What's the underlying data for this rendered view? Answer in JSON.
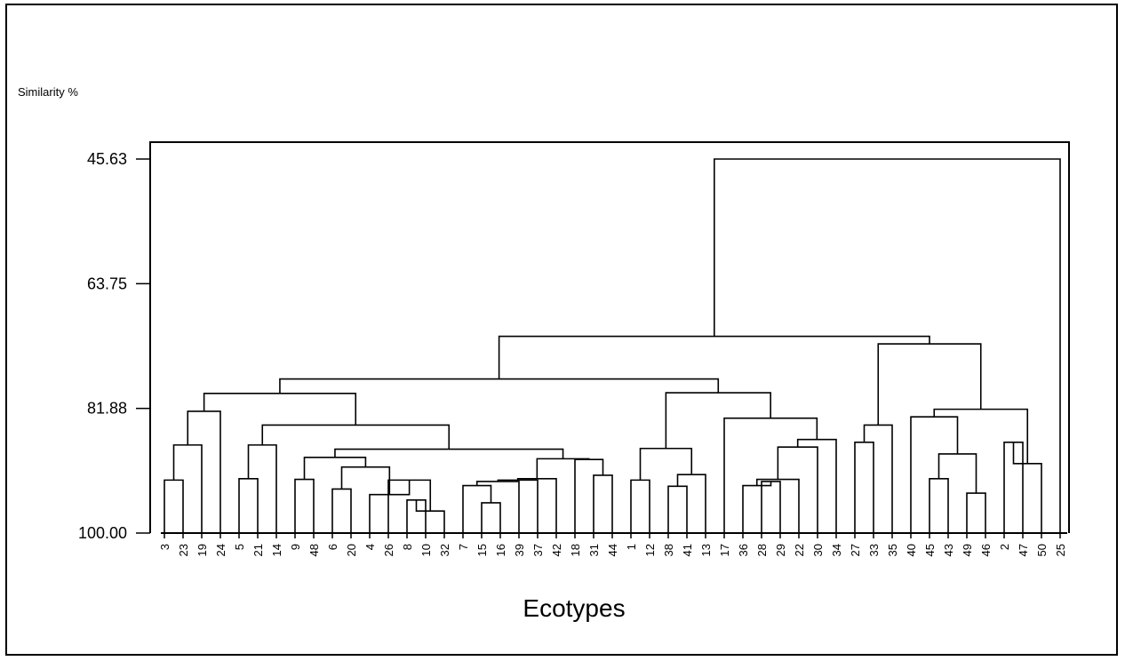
{
  "chart_data": {
    "type": "dendrogram",
    "ylabel": "Similarity %",
    "xlabel": "Ecotypes",
    "ylim": [
      45.63,
      100.0
    ],
    "y_ticks": [
      45.63,
      63.75,
      81.88,
      100.0
    ],
    "y_tick_labels": [
      "45.63",
      "63.75",
      "81.88",
      "100.00"
    ],
    "leaves": [
      "3",
      "23",
      "19",
      "24",
      "5",
      "21",
      "14",
      "9",
      "48",
      "6",
      "20",
      "4",
      "26",
      "8",
      "10",
      "32",
      "7",
      "15",
      "16",
      "39",
      "37",
      "42",
      "18",
      "31",
      "44",
      "1",
      "12",
      "38",
      "41",
      "13",
      "17",
      "36",
      "28",
      "29",
      "22",
      "30",
      "34",
      "27",
      "33",
      "35",
      "40",
      "45",
      "43",
      "49",
      "46",
      "2",
      "47",
      "50",
      "25"
    ],
    "merges": [
      {
        "id": "a1",
        "children": [
          "3",
          "23"
        ],
        "similarity": 92.3
      },
      {
        "id": "a2",
        "children": [
          "a1",
          "19"
        ],
        "similarity": 87.2
      },
      {
        "id": "a3",
        "children": [
          "a2",
          "24"
        ],
        "similarity": 82.3
      },
      {
        "id": "b1",
        "children": [
          "5",
          "21"
        ],
        "similarity": 92.1
      },
      {
        "id": "b2",
        "children": [
          "b1",
          "14"
        ],
        "similarity": 87.2
      },
      {
        "id": "c1",
        "children": [
          "9",
          "48"
        ],
        "similarity": 92.2
      },
      {
        "id": "c2",
        "children": [
          "6",
          "20"
        ],
        "similarity": 93.6
      },
      {
        "id": "c3",
        "children": [
          "8",
          "10"
        ],
        "similarity": 95.2
      },
      {
        "id": "c4",
        "children": [
          "c3",
          "32"
        ],
        "similarity": 96.8
      },
      {
        "id": "c5",
        "children": [
          "c4",
          "26"
        ],
        "similarity": 92.3
      },
      {
        "id": "c6",
        "children": [
          "c5",
          "4"
        ],
        "similarity": 94.4
      },
      {
        "id": "c7",
        "children": [
          "c2",
          "c6"
        ],
        "similarity": 90.4
      },
      {
        "id": "c8",
        "children": [
          "c1",
          "c7"
        ],
        "similarity": 89.0
      },
      {
        "id": "d1",
        "children": [
          "15",
          "16"
        ],
        "similarity": 95.6
      },
      {
        "id": "d2",
        "children": [
          "7",
          "d1"
        ],
        "similarity": 93.1
      },
      {
        "id": "d3",
        "children": [
          "d2",
          "39"
        ],
        "similarity": 92.5
      },
      {
        "id": "d4",
        "children": [
          "d3",
          "37"
        ],
        "similarity": 92.3
      },
      {
        "id": "d5",
        "children": [
          "d4",
          "42"
        ],
        "similarity": 92.1
      },
      {
        "id": "d6",
        "children": [
          "31",
          "44"
        ],
        "similarity": 91.6
      },
      {
        "id": "d7",
        "children": [
          "18",
          "d6"
        ],
        "similarity": 89.3
      },
      {
        "id": "d8",
        "children": [
          "d5",
          "d7"
        ],
        "similarity": 89.2
      },
      {
        "id": "e1",
        "children": [
          "c8",
          "d8"
        ],
        "similarity": 87.8
      },
      {
        "id": "e2",
        "children": [
          "b2",
          "e1"
        ],
        "similarity": 84.3
      },
      {
        "id": "e3",
        "children": [
          "a3",
          "e2"
        ],
        "similarity": 79.7
      },
      {
        "id": "f1",
        "children": [
          "1",
          "12"
        ],
        "similarity": 92.3
      },
      {
        "id": "f2",
        "children": [
          "38",
          "41"
        ],
        "similarity": 93.2
      },
      {
        "id": "f3",
        "children": [
          "f2",
          "13"
        ],
        "similarity": 91.5
      },
      {
        "id": "f4",
        "children": [
          "f1",
          "f3"
        ],
        "similarity": 87.7
      },
      {
        "id": "g1",
        "children": [
          "28",
          "29"
        ],
        "similarity": 92.5
      },
      {
        "id": "g2",
        "children": [
          "36",
          "g1"
        ],
        "similarity": 93.1
      },
      {
        "id": "g3",
        "children": [
          "g2",
          "22"
        ],
        "similarity": 92.2
      },
      {
        "id": "g4",
        "children": [
          "g3",
          "30"
        ],
        "similarity": 87.5
      },
      {
        "id": "g5",
        "children": [
          "g4",
          "34"
        ],
        "similarity": 86.4
      },
      {
        "id": "g6",
        "children": [
          "17",
          "g5"
        ],
        "similarity": 83.3
      },
      {
        "id": "f5",
        "children": [
          "f4",
          "g6"
        ],
        "similarity": 79.6
      },
      {
        "id": "f6",
        "children": [
          "e3",
          "f5"
        ],
        "similarity": 77.6
      },
      {
        "id": "h1",
        "children": [
          "27",
          "33"
        ],
        "similarity": 86.8
      },
      {
        "id": "h2",
        "children": [
          "h1",
          "35"
        ],
        "similarity": 84.3
      },
      {
        "id": "h3",
        "children": [
          "45",
          "43"
        ],
        "similarity": 92.1
      },
      {
        "id": "h4",
        "children": [
          "49",
          "46"
        ],
        "similarity": 94.2
      },
      {
        "id": "h5",
        "children": [
          "h3",
          "h4"
        ],
        "similarity": 88.5
      },
      {
        "id": "h6",
        "children": [
          "40",
          "h5"
        ],
        "similarity": 83.1
      },
      {
        "id": "h7",
        "children": [
          "2",
          "47"
        ],
        "similarity": 86.8
      },
      {
        "id": "h8",
        "children": [
          "h7",
          "50"
        ],
        "similarity": 89.9
      },
      {
        "id": "h9",
        "children": [
          "h6",
          "h8"
        ],
        "similarity": 82.0
      },
      {
        "id": "h10",
        "children": [
          "h2",
          "h9"
        ],
        "similarity": 72.5
      },
      {
        "id": "i1",
        "children": [
          "f6",
          "h10"
        ],
        "similarity": 71.4
      },
      {
        "id": "i2",
        "children": [
          "i1",
          "25"
        ],
        "similarity": 45.63
      }
    ]
  }
}
